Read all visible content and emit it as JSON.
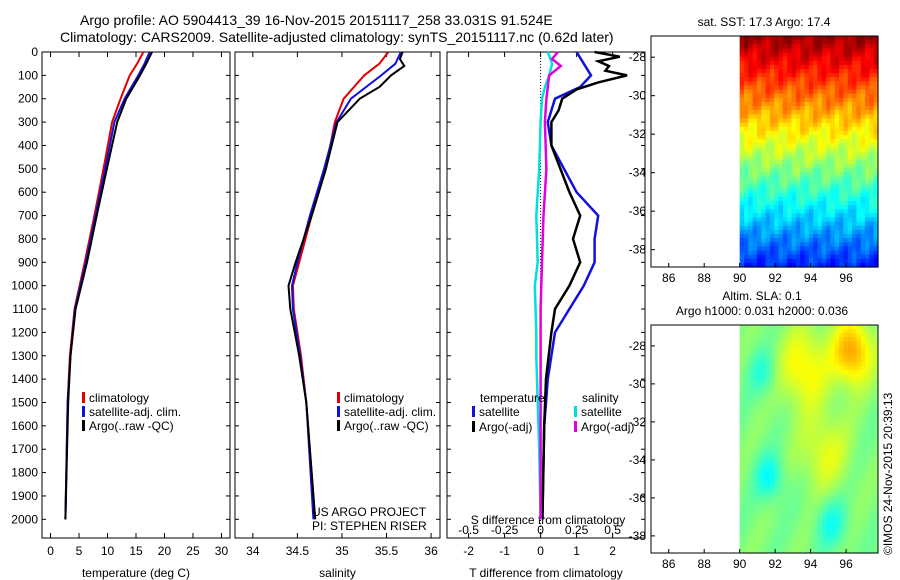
{
  "title": {
    "line1": "Argo profile: AO 5904413_39 16-Nov-2015 20151117_258 33.031S 91.524E",
    "line2": "Climatology: CARS2009. Satellite-adjusted climatology: synTS_20151117.nc (0.62d later)"
  },
  "watermark": "©IMOS 24-Nov-2015 20:39:13",
  "project": {
    "line1": "US ARGO PROJECT",
    "line2": "PI: STEPHEN RISER"
  },
  "colors": {
    "climatology": "#e00000",
    "satellite": "#1010e0",
    "argo": "#000000",
    "cyan": "#00e0e0",
    "magenta": "#e000e0"
  },
  "chart_data": [
    {
      "type": "line",
      "name": "temperature-profile",
      "xlabel": "temperature (deg C)",
      "ylabel": "",
      "xlim": [
        -1.5,
        31.5
      ],
      "ylim": [
        2080,
        0
      ],
      "xticks": [
        "0",
        "5",
        "10",
        "15",
        "20",
        "25",
        "30"
      ],
      "yticks": [
        "0",
        "100",
        "200",
        "300",
        "400",
        "500",
        "600",
        "700",
        "800",
        "900",
        "1000",
        "1100",
        "1200",
        "1300",
        "1400",
        "1500",
        "1600",
        "1700",
        "1800",
        "1900",
        "2000"
      ],
      "legend": [
        "climatology",
        "satellite-adj. clim.",
        "Argo(..raw -QC)"
      ],
      "series": [
        {
          "name": "climatology",
          "depth": [
            0,
            50,
            100,
            200,
            300,
            500,
            700,
            900,
            1100,
            1300,
            1500,
            2000
          ],
          "values": [
            16.3,
            15.2,
            13.9,
            12.3,
            10.8,
            9.3,
            7.7,
            6.0,
            4.2,
            3.4,
            3.0,
            2.6
          ]
        },
        {
          "name": "satellite-adj. clim.",
          "depth": [
            0,
            50,
            100,
            200,
            300,
            500,
            700,
            900,
            1100,
            1300,
            1500,
            2000
          ],
          "values": [
            17.4,
            16.5,
            15.4,
            13.0,
            11.2,
            9.6,
            7.9,
            6.2,
            4.3,
            3.5,
            3.0,
            2.6
          ]
        },
        {
          "name": "Argo(..raw -QC)",
          "depth": [
            0,
            20,
            50,
            100,
            150,
            200,
            300,
            500,
            700,
            900,
            1100,
            1300,
            1500,
            2000
          ],
          "values": [
            17.8,
            17.4,
            16.8,
            15.7,
            14.5,
            13.3,
            11.7,
            9.9,
            8.1,
            6.4,
            4.4,
            3.5,
            3.1,
            2.6
          ]
        }
      ]
    },
    {
      "type": "line",
      "name": "salinity-profile",
      "xlabel": "salinity",
      "xlim": [
        33.8,
        36.1
      ],
      "ylim": [
        2080,
        0
      ],
      "xticks": [
        "34",
        "34.5",
        "35",
        "35.5",
        "36"
      ],
      "legend": [
        "climatology",
        "satellite-adj. clim.",
        "Argo(..raw -QC)"
      ],
      "series": [
        {
          "name": "climatology",
          "depth": [
            0,
            50,
            100,
            200,
            300,
            500,
            700,
            900,
            1000,
            1100,
            1300,
            1500,
            2000
          ],
          "values": [
            35.52,
            35.42,
            35.25,
            35.02,
            34.92,
            34.82,
            34.66,
            34.52,
            34.45,
            34.46,
            34.54,
            34.6,
            34.7
          ]
        },
        {
          "name": "satellite-adj. clim.",
          "depth": [
            0,
            50,
            100,
            200,
            300,
            500,
            700,
            900,
            1000,
            1100,
            1300,
            1500,
            2000
          ],
          "values": [
            35.66,
            35.6,
            35.44,
            35.1,
            34.94,
            34.8,
            34.64,
            34.5,
            34.44,
            34.45,
            34.53,
            34.6,
            34.68
          ]
        },
        {
          "name": "Argo(..raw -QC)",
          "depth": [
            0,
            30,
            60,
            100,
            150,
            200,
            300,
            500,
            700,
            900,
            1000,
            1100,
            1300,
            1500,
            2000
          ],
          "values": [
            35.68,
            35.65,
            35.7,
            35.55,
            35.42,
            35.2,
            34.95,
            34.82,
            34.66,
            34.48,
            34.4,
            34.42,
            34.52,
            34.6,
            34.7
          ]
        }
      ]
    },
    {
      "type": "line",
      "name": "difference-profile",
      "xlabel": "T difference from climatology",
      "xlabel_top": "S difference from climatology",
      "xlim": [
        -2.6,
        2.9
      ],
      "ylim": [
        2080,
        0
      ],
      "xticks": [
        "-2",
        "-1",
        "0",
        "1",
        "2"
      ],
      "xticks_top": [
        "-0.5",
        "-0.25",
        "0",
        "0.25",
        "0.5"
      ],
      "legend_groups": {
        "left": "temperature",
        "right": "salinity"
      },
      "legend": [
        "satellite",
        "Argo(-adj)",
        "satellite",
        "Argo(-adj)"
      ],
      "series": [
        {
          "name": "T satellite",
          "depth": [
            0,
            50,
            100,
            150,
            200,
            300,
            400,
            600,
            700,
            800,
            900,
            1000,
            1100,
            1200,
            1400,
            1600,
            2000
          ],
          "values": [
            1.0,
            1.2,
            1.4,
            1.1,
            0.4,
            0.2,
            0.3,
            1.0,
            1.6,
            1.5,
            1.5,
            1.2,
            0.8,
            0.4,
            0.2,
            0.1,
            0.05
          ]
        },
        {
          "name": "T Argo(-adj)",
          "depth": [
            0,
            20,
            40,
            60,
            80,
            100,
            130,
            160,
            200,
            250,
            300,
            400,
            600,
            700,
            800,
            900,
            1000,
            1100,
            1200,
            1400,
            1600,
            2000
          ],
          "values": [
            1.5,
            2.2,
            1.6,
            1.9,
            1.8,
            2.4,
            1.6,
            1.0,
            0.6,
            0.5,
            0.3,
            0.3,
            0.8,
            1.1,
            0.9,
            1.1,
            0.8,
            0.4,
            0.3,
            0.15,
            0.1,
            0.05
          ]
        },
        {
          "name": "S satellite",
          "depth": [
            0,
            50,
            100,
            150,
            200,
            300,
            500,
            700,
            900,
            1000,
            1200,
            1300,
            1500,
            1700,
            2000
          ],
          "values": [
            0.05,
            0.08,
            0.06,
            0.03,
            0.01,
            0.0,
            -0.01,
            -0.03,
            -0.02,
            -0.04,
            -0.03,
            -0.03,
            -0.02,
            -0.01,
            0.0
          ]
        },
        {
          "name": "S Argo(-adj)",
          "depth": [
            0,
            30,
            60,
            100,
            150,
            200,
            300,
            500,
            700,
            900,
            1100,
            1300,
            1500,
            2000
          ],
          "values": [
            0.12,
            0.08,
            0.14,
            0.06,
            0.05,
            0.04,
            0.03,
            0.04,
            0.02,
            0.01,
            0.0,
            0.0,
            0.0,
            0.0
          ]
        }
      ]
    },
    {
      "type": "heatmap",
      "name": "sst-map",
      "title": "sat. SST: 17.3 Argo: 17.4",
      "xlim": [
        85,
        97.8
      ],
      "ylim": [
        -38.9,
        -26.9
      ],
      "xticks": [
        "86",
        "88",
        "90",
        "92",
        "94",
        "96"
      ],
      "yticks": [
        "-28",
        "-30",
        "-32",
        "-34",
        "-36",
        "-38"
      ],
      "data_start_lon": 90
    },
    {
      "type": "heatmap",
      "name": "sla-map",
      "title_line1": "Altim. SLA: 0.1",
      "title_line2": "Argo h1000: 0.031 h2000: 0.036",
      "xlim": [
        85,
        97.8
      ],
      "ylim": [
        -38.9,
        -26.9
      ],
      "xticks": [
        "86",
        "88",
        "90",
        "92",
        "94",
        "96"
      ],
      "yticks": [
        "-28",
        "-30",
        "-32",
        "-34",
        "-36",
        "-38"
      ],
      "data_start_lon": 90
    }
  ]
}
